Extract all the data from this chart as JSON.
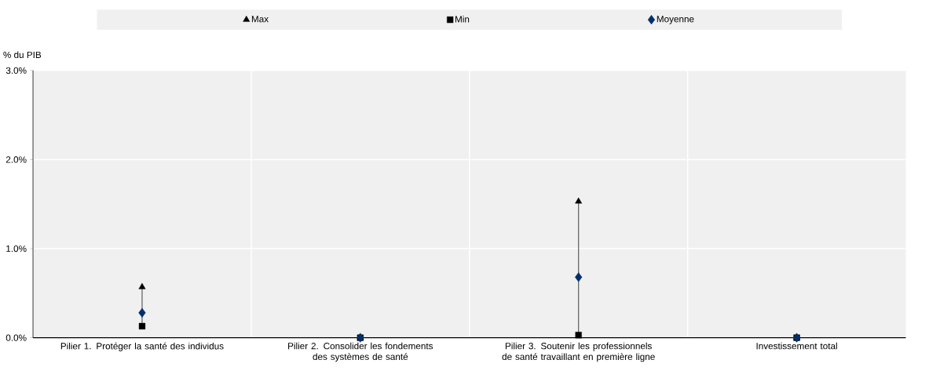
{
  "chart_data": {
    "type": "scatter",
    "ylabel": "% du PIB",
    "categories": [
      "Pilier 1. Protéger la santé des individus",
      "Pilier 2. Consolider les fondements des systèmes de santé",
      "Pilier 3. Soutenir les professionnels de santé travaillant en première ligne",
      "Investissement total"
    ],
    "series": [
      {
        "name": "Max",
        "color": "#000000",
        "marker": "triangle",
        "values": [
          0.57,
          0,
          1.53,
          0
        ]
      },
      {
        "name": "Min",
        "color": "#000000",
        "marker": "square",
        "values": [
          0.13,
          0,
          0.03,
          0
        ]
      },
      {
        "name": "Moyenne",
        "color": "#002f6c",
        "marker": "diamond",
        "values": [
          0.28,
          0,
          0.68,
          0
        ]
      }
    ],
    "ylim": [
      0,
      3
    ],
    "yticks": [
      {
        "value": 0,
        "label": "0.0%"
      },
      {
        "value": 1,
        "label": "1.0%"
      },
      {
        "value": 2,
        "label": "2.0%"
      },
      {
        "value": 3,
        "label": "3.0%"
      }
    ],
    "grid": true,
    "legend": "top"
  }
}
